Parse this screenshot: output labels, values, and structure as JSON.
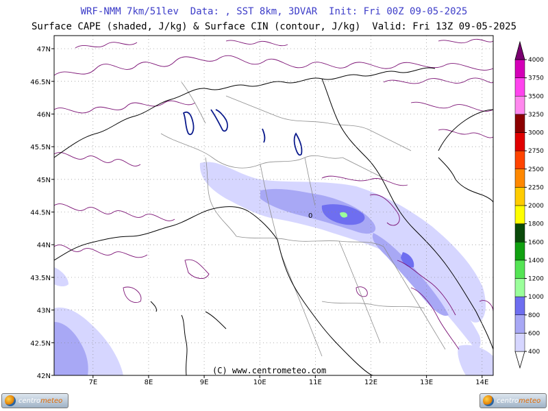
{
  "header": {
    "line1": "WRF-NMM 7km/51lev  Data: , SST 8km, 3DVAR  Init: Fri 00Z 09-05-2025",
    "line2": "Surface CAPE (shaded, J/kg) & Surface CIN (contour, J/kg)  Valid: Fri 13Z 09-05-2025"
  },
  "map": {
    "lon_range": [
      6.3,
      14.2
    ],
    "lat_range": [
      42,
      47.2
    ],
    "lon_ticks": [
      "7E",
      "8E",
      "9E",
      "10E",
      "11E",
      "12E",
      "13E",
      "14E"
    ],
    "lon_tick_values": [
      7,
      8,
      9,
      10,
      11,
      12,
      13,
      14
    ],
    "lat_ticks": [
      "42N",
      "42.5N",
      "43N",
      "43.5N",
      "44N",
      "44.5N",
      "45N",
      "45.5N",
      "46N",
      "46.5N",
      "47N"
    ],
    "lat_tick_values": [
      42,
      42.5,
      43,
      43.5,
      44,
      44.5,
      45,
      45.5,
      46,
      46.5,
      47
    ],
    "contour_label": "0",
    "colors": {
      "cin_contour": "#7a0f73",
      "border": "#000000",
      "regions": "#8c8c8c",
      "lakes": "#0a1a8c"
    }
  },
  "colorbar": {
    "levels": [
      "400",
      "600",
      "800",
      "1000",
      "1200",
      "1400",
      "1600",
      "1800",
      "2000",
      "2250",
      "2500",
      "2750",
      "3000",
      "3250",
      "3500",
      "3750",
      "4000"
    ],
    "colors": [
      "#d6d6ff",
      "#a8a8f5",
      "#6e6ef0",
      "#9bff9b",
      "#55e455",
      "#10a010",
      "#0a4a0a",
      "#ffff00",
      "#ffcc00",
      "#ff8800",
      "#ff4400",
      "#e00000",
      "#8c0000",
      "#ff88ee",
      "#ff44ee",
      "#d400b8",
      "#7a0070"
    ]
  },
  "footer": {
    "copyright": "(C) www.centrometeo.com",
    "logo_text_a": "centro",
    "logo_text_b": "meteo"
  }
}
